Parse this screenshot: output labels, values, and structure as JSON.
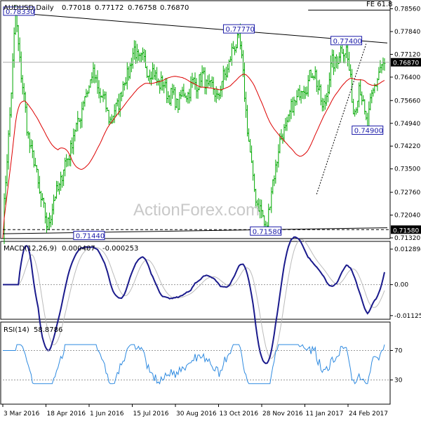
{
  "chart_data": {
    "type": "candlestick",
    "symbol_title": "AUDUSD,Daily",
    "ohlc_readout": [
      "0.77018",
      "0.77172",
      "0.76758",
      "0.76870"
    ],
    "watermark": "ActionForex.com",
    "fib_label": "FE 61.8",
    "current_price": "0.76870",
    "x_ticks": [
      "3 Mar 2016",
      "18 Apr 2016",
      "1 Jun 2016",
      "15 Jul 2016",
      "30 Aug 2016",
      "13 Oct 2016",
      "28 Nov 2016",
      "11 Jan 2017",
      "24 Feb 2017"
    ],
    "price_ticks": [
      "0.78560",
      "0.77840",
      "0.77120",
      "0.76400",
      "0.75660",
      "0.74940",
      "0.74220",
      "0.73500",
      "0.72760",
      "0.72040",
      "0.71320"
    ],
    "price_range": [
      0.7132,
      0.7866
    ],
    "price_labels": [
      {
        "text": "0.78330",
        "value": 0.7833,
        "day": 9
      },
      {
        "text": "0.77770",
        "value": 0.7777,
        "day": 167
      },
      {
        "text": "0.77400",
        "value": 0.774,
        "day": 243
      },
      {
        "text": "0.74900",
        "value": 0.749,
        "day": 258
      },
      {
        "text": "0.71440",
        "value": 0.7144,
        "day": 61
      },
      {
        "text": "0.71580",
        "value": 0.7158,
        "day": 186
      }
    ],
    "series": [
      {
        "name": "price",
        "type": "ohlc",
        "color": "#00aa00",
        "anchors_days": [
          0,
          9,
          17,
          31,
          48,
          63,
          77,
          93,
          108,
          123,
          140,
          152,
          167,
          177,
          186,
          195,
          208,
          221,
          226,
          233,
          243,
          248,
          252,
          258,
          263,
          270
        ],
        "anchors_values": [
          0.7153,
          0.7833,
          0.748,
          0.717,
          0.742,
          0.765,
          0.75,
          0.772,
          0.764,
          0.756,
          0.764,
          0.758,
          0.7777,
          0.73,
          0.7158,
          0.742,
          0.758,
          0.766,
          0.753,
          0.768,
          0.774,
          0.753,
          0.761,
          0.749,
          0.762,
          0.7687
        ]
      },
      {
        "name": "SMA",
        "color": "#dd0000"
      }
    ],
    "macd": {
      "title": "MACD(12,26,9)",
      "main": "0.000407",
      "signal": "-0.000253",
      "ticks": [
        "0.012894",
        "0.00",
        "-0.011253"
      ]
    },
    "rsi": {
      "title": "RSI(14)",
      "value": "58.8786",
      "ticks": [
        "70",
        "30"
      ]
    },
    "trendlines": [
      {
        "from": {
          "day": 9,
          "value": 0.7843
        },
        "to": {
          "day": 272,
          "value": 0.7748
        }
      },
      {
        "from": {
          "day": 0,
          "value": 0.7145
        },
        "to": {
          "day": 272,
          "value": 0.7164
        }
      }
    ],
    "fib_level": 0.7852
  }
}
